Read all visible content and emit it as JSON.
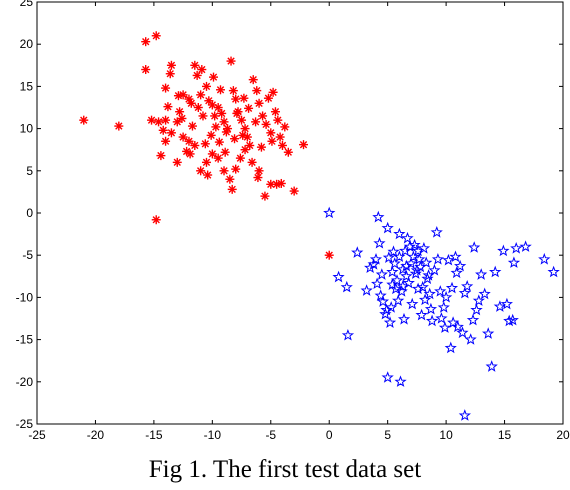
{
  "caption": "Fig 1. The first test data set",
  "chart_data": {
    "type": "scatter",
    "xlim": [
      -25,
      20
    ],
    "ylim": [
      -25,
      25
    ],
    "xticks": [
      "-25",
      "-20",
      "-15",
      "-10",
      "-5",
      "0",
      "5",
      "10",
      "15",
      "20"
    ],
    "yticks": [
      "25",
      "20",
      "15",
      "10",
      "5",
      "0",
      "-5",
      "-10",
      "-15",
      "-20",
      "-25"
    ],
    "grid": false,
    "series": [
      {
        "marker": "asterisk",
        "color": "#ff0000",
        "points": [
          [
            -21,
            11
          ],
          [
            -18,
            10.3
          ],
          [
            -15.7,
            20.3
          ],
          [
            -14.8,
            21
          ],
          [
            -15.7,
            17
          ],
          [
            -14,
            14.8
          ],
          [
            -13.6,
            16.5
          ],
          [
            -13.5,
            17.5
          ],
          [
            -15.2,
            11
          ],
          [
            -14.6,
            10.8
          ],
          [
            -14.2,
            9.8
          ],
          [
            -14,
            8.5
          ],
          [
            -14.4,
            6.8
          ],
          [
            -13,
            10.8
          ],
          [
            -12.8,
            12
          ],
          [
            -12.5,
            14
          ],
          [
            -12,
            13.5
          ],
          [
            -11.5,
            17.5
          ],
          [
            -11.3,
            16.3
          ],
          [
            -11,
            14
          ],
          [
            -10.5,
            15
          ],
          [
            -10.3,
            13.3
          ],
          [
            -10,
            12.8
          ],
          [
            -9.8,
            11.5
          ],
          [
            -9.5,
            12.5
          ],
          [
            -9.2,
            11.8
          ],
          [
            -9,
            10.8
          ],
          [
            -8.7,
            10
          ],
          [
            -8.4,
            18
          ],
          [
            -8.2,
            14.5
          ],
          [
            -8,
            13.5
          ],
          [
            -7.8,
            12
          ],
          [
            -7.5,
            11
          ],
          [
            -7.2,
            10
          ],
          [
            -7,
            9
          ],
          [
            -6.8,
            8
          ],
          [
            -6.5,
            15.8
          ],
          [
            -6.2,
            14.5
          ],
          [
            -6,
            13
          ],
          [
            -5.7,
            11.5
          ],
          [
            -5.4,
            10.5
          ],
          [
            -5,
            9.5
          ],
          [
            -4.8,
            14.3
          ],
          [
            -4.6,
            12
          ],
          [
            -4.4,
            11
          ],
          [
            -4.2,
            9
          ],
          [
            -4,
            8
          ],
          [
            -2.2,
            8.1
          ],
          [
            -3,
            2.6
          ],
          [
            -4.5,
            3.4
          ],
          [
            -5,
            3.4
          ],
          [
            -5.5,
            2
          ],
          [
            -6,
            5
          ],
          [
            -6.6,
            6
          ],
          [
            -7.2,
            7.5
          ],
          [
            -7.6,
            6.5
          ],
          [
            -8,
            5.2
          ],
          [
            -8.5,
            4
          ],
          [
            -9,
            5
          ],
          [
            -9.5,
            6.5
          ],
          [
            -10,
            7
          ],
          [
            -10.5,
            6
          ],
          [
            -11,
            5
          ],
          [
            -11.5,
            8
          ],
          [
            -12,
            8.5
          ],
          [
            -12.5,
            9
          ],
          [
            -13,
            6
          ],
          [
            -13.5,
            9.5
          ],
          [
            -14,
            11
          ],
          [
            -12.6,
            11.2
          ],
          [
            -11.7,
            10.3
          ],
          [
            -10.8,
            11.5
          ],
          [
            -10.1,
            9.2
          ],
          [
            -9.4,
            8.4
          ],
          [
            -8.8,
            9.6
          ],
          [
            -8.1,
            8.8
          ],
          [
            -7.4,
            9.2
          ],
          [
            -6.3,
            10.8
          ],
          [
            -5.8,
            7.8
          ],
          [
            -4.9,
            8.5
          ],
          [
            -3.8,
            10.2
          ],
          [
            -3.5,
            7.2
          ],
          [
            -10.6,
            8.2
          ],
          [
            -11.2,
            12.5
          ],
          [
            -9.7,
            10.2
          ],
          [
            -8.9,
            7.2
          ],
          [
            -7.9,
            11.8
          ],
          [
            -6.9,
            12.4
          ],
          [
            -12.2,
            7.3
          ],
          [
            -13.8,
            12.6
          ],
          [
            -14.8,
            -0.8
          ],
          [
            0,
            -5
          ],
          [
            -9.3,
            14.6
          ],
          [
            -10.4,
            4.5
          ],
          [
            -6.1,
            4.2
          ],
          [
            -4.1,
            3.5
          ],
          [
            -8.3,
            2.8
          ],
          [
            -11.8,
            13
          ],
          [
            -7.3,
            13.6
          ],
          [
            -5.2,
            13.6
          ],
          [
            -12.9,
            13.9
          ],
          [
            -10.9,
            17
          ],
          [
            -9.9,
            16.1
          ],
          [
            -11.9,
            7
          ]
        ]
      },
      {
        "marker": "pentagram",
        "color": "#0000ff",
        "points": [
          [
            0,
            0
          ],
          [
            0.8,
            -7.6
          ],
          [
            1.5,
            -8.8
          ],
          [
            1.6,
            -14.5
          ],
          [
            2.4,
            -4.7
          ],
          [
            3.2,
            -9.2
          ],
          [
            3.5,
            -6.5
          ],
          [
            4,
            -5.5
          ],
          [
            4.2,
            -0.5
          ],
          [
            4.5,
            -7.3
          ],
          [
            4.6,
            -10.5
          ],
          [
            4.8,
            -12
          ],
          [
            5,
            -1.8
          ],
          [
            5.2,
            -13
          ],
          [
            5.4,
            -7
          ],
          [
            5.6,
            -6
          ],
          [
            5.8,
            -8
          ],
          [
            6,
            -5.2
          ],
          [
            6.2,
            -9.3
          ],
          [
            6.3,
            -6.7
          ],
          [
            6.5,
            -4.5
          ],
          [
            6.6,
            -7.5
          ],
          [
            6.8,
            -8.3
          ],
          [
            7,
            -6
          ],
          [
            7.2,
            -5.2
          ],
          [
            7.4,
            -7.2
          ],
          [
            7.6,
            -4.5
          ],
          [
            7.8,
            -6.4
          ],
          [
            8,
            -8.8
          ],
          [
            8.2,
            -10.3
          ],
          [
            8.4,
            -7.8
          ],
          [
            8.6,
            -9.6
          ],
          [
            8.8,
            -12.8
          ],
          [
            9,
            -6.8
          ],
          [
            9.3,
            -5.5
          ],
          [
            9.6,
            -12.5
          ],
          [
            9.8,
            -11.2
          ],
          [
            10,
            -10
          ],
          [
            10.4,
            -16
          ],
          [
            10.6,
            -13
          ],
          [
            10.8,
            -5.2
          ],
          [
            11,
            -13.5
          ],
          [
            11.4,
            -14.2
          ],
          [
            11.6,
            -9.5
          ],
          [
            11.8,
            -8.7
          ],
          [
            12.1,
            -15
          ],
          [
            12.3,
            -12.7
          ],
          [
            12.4,
            -4.1
          ],
          [
            13,
            -7.3
          ],
          [
            13.6,
            -14.3
          ],
          [
            13.9,
            -18.2
          ],
          [
            14.2,
            -7
          ],
          [
            14.9,
            -4.5
          ],
          [
            15.2,
            -10.8
          ],
          [
            15.4,
            -12.8
          ],
          [
            15.7,
            -12.7
          ],
          [
            16,
            -4.2
          ],
          [
            16.8,
            -4
          ],
          [
            18.4,
            -5.5
          ],
          [
            19.2,
            -7
          ],
          [
            5,
            -19.5
          ],
          [
            6.1,
            -20
          ],
          [
            11.6,
            -24
          ],
          [
            5.3,
            -11.2
          ],
          [
            5.9,
            -10.4
          ],
          [
            6.4,
            -12.6
          ],
          [
            7.1,
            -10.8
          ],
          [
            7.9,
            -12.1
          ],
          [
            4.1,
            -8.4
          ],
          [
            4.4,
            -9.8
          ],
          [
            5.1,
            -5.3
          ],
          [
            5.5,
            -4.6
          ],
          [
            5.7,
            -9
          ],
          [
            6.7,
            -3
          ],
          [
            6.9,
            -4
          ],
          [
            7.3,
            -3.8
          ],
          [
            7.7,
            -5.5
          ],
          [
            8.1,
            -4.2
          ],
          [
            8.3,
            -5.9
          ],
          [
            8.7,
            -11.4
          ],
          [
            9.2,
            -2.3
          ],
          [
            9.5,
            -9.3
          ],
          [
            10.2,
            -5.6
          ],
          [
            10.9,
            -7.1
          ],
          [
            12.8,
            -10.4
          ],
          [
            13.3,
            -9.6
          ],
          [
            3.8,
            -6.1
          ],
          [
            4.3,
            -3.6
          ],
          [
            4.9,
            -11.5
          ],
          [
            6,
            -2.5
          ],
          [
            7.5,
            -6.8
          ],
          [
            8.5,
            -7.4
          ],
          [
            9.9,
            -13.6
          ],
          [
            10.5,
            -8.9
          ],
          [
            11.2,
            -6.3
          ],
          [
            12.6,
            -11.5
          ],
          [
            14.6,
            -11.1
          ],
          [
            15.8,
            -5.9
          ],
          [
            6.6,
            -6.3
          ],
          [
            7.6,
            -9
          ],
          [
            5.4,
            -8.5
          ],
          [
            6.3,
            -8.7
          ]
        ]
      }
    ]
  }
}
